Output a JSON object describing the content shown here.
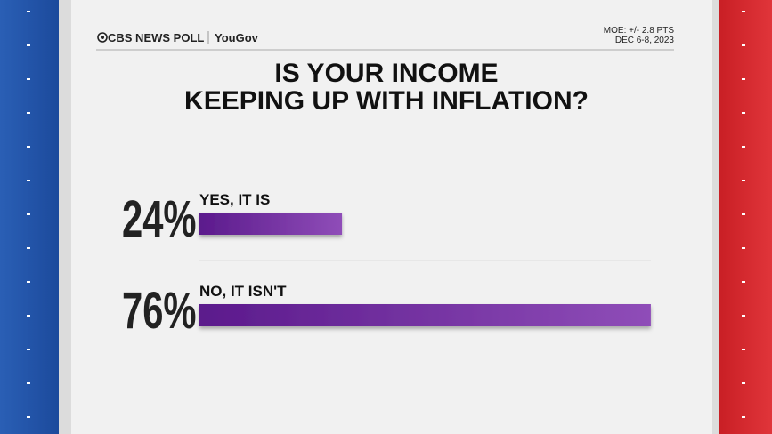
{
  "chart_data": {
    "type": "bar",
    "orientation": "horizontal",
    "brand": "CBS NEWS POLL",
    "partner": "YouGov",
    "moe": "MOE: +/- 2.8 PTS",
    "dates": "DEC 6-8, 2023",
    "title": [
      "IS YOUR INCOME",
      "KEEPING UP WITH INFLATION?"
    ],
    "categories": [
      "YES, IT IS",
      "NO, IT ISN'T"
    ],
    "values": [
      24,
      76
    ],
    "value_labels": [
      "24%",
      "76%"
    ],
    "color": [
      "#5b1a8c",
      "#8f4db8"
    ]
  }
}
